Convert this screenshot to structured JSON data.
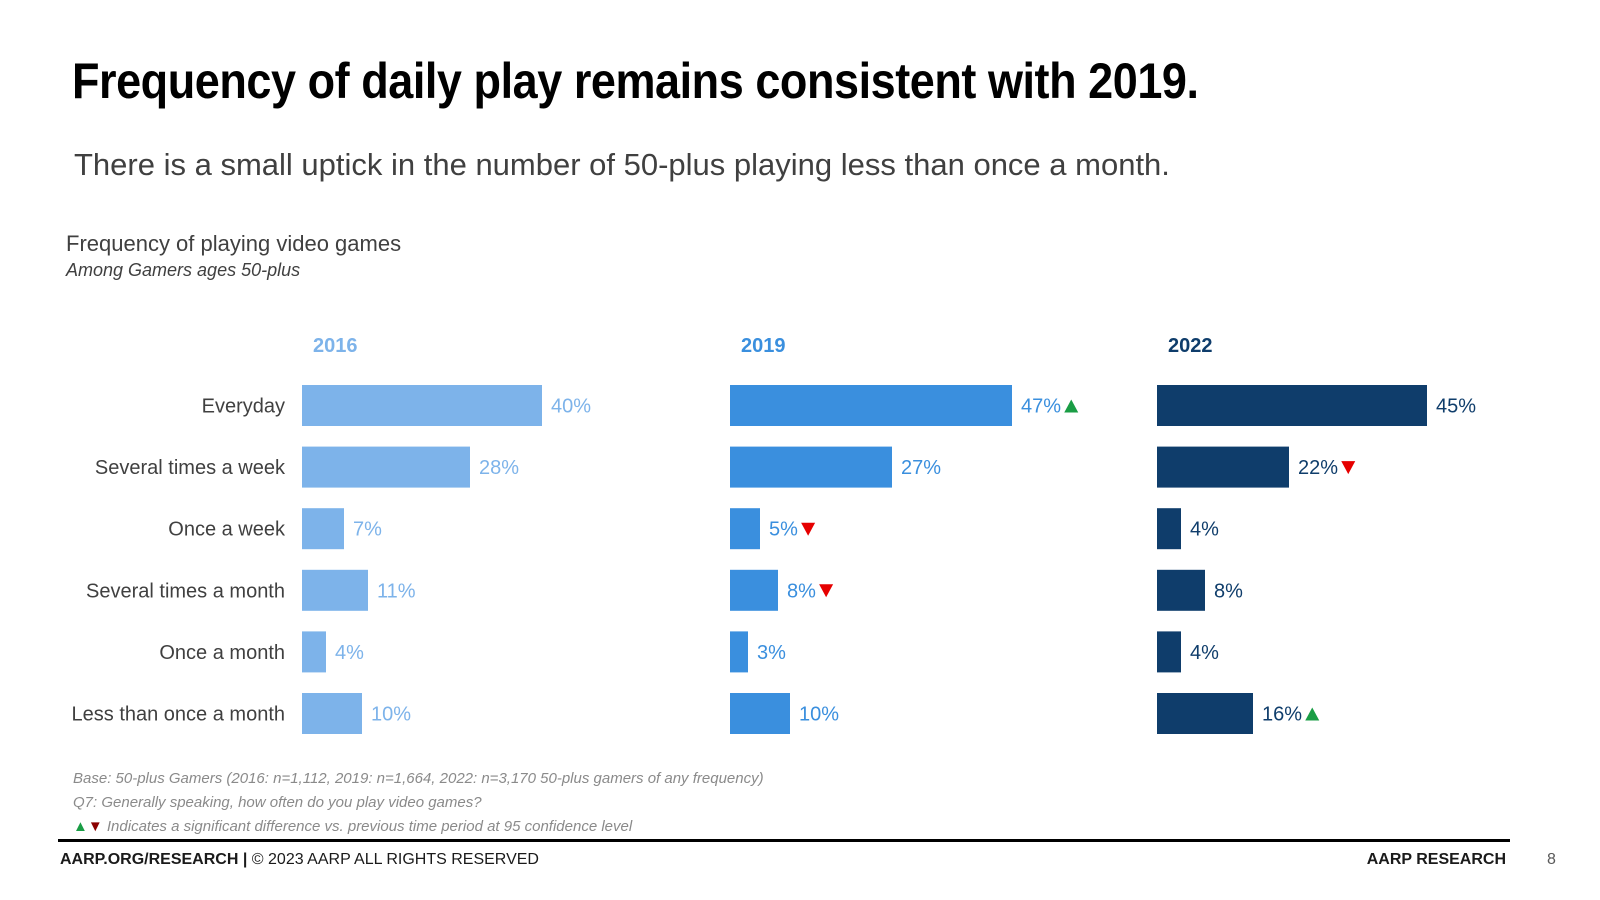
{
  "slide": {
    "title": "Frequency of daily play remains consistent with 2019.",
    "subtitle": "There is a small uptick in the number of 50-plus playing less than once a month."
  },
  "chart_data": {
    "type": "bar",
    "orientation": "horizontal",
    "title": "Frequency of playing video games",
    "subtitle": "Among Gamers ages 50-plus",
    "categories": [
      "Everyday",
      "Several times a week",
      "Once a week",
      "Several times a month",
      "Once a month",
      "Less than once a month"
    ],
    "value_format": "percent",
    "series": [
      {
        "name": "2016",
        "color": "#7db3ea",
        "values": [
          40,
          28,
          7,
          11,
          4,
          10
        ],
        "markers": [
          "",
          "",
          "",
          "",
          "",
          ""
        ]
      },
      {
        "name": "2019",
        "color": "#3a8fde",
        "values": [
          47,
          27,
          5,
          8,
          3,
          10
        ],
        "markers": [
          "up",
          "",
          "down",
          "down",
          "",
          ""
        ]
      },
      {
        "name": "2022",
        "color": "#0f3d6b",
        "values": [
          45,
          22,
          4,
          8,
          4,
          16
        ],
        "markers": [
          "",
          "down",
          "",
          "",
          "",
          "up"
        ]
      }
    ],
    "marker_colors": {
      "up": "#1a9d45",
      "down": "#e60000"
    },
    "xlim": [
      0,
      50
    ]
  },
  "notes": {
    "base": "Base: 50-plus Gamers (2016: n=1,112, 2019: n=1,664, 2022: n=3,170 50-plus gamers of any frequency)",
    "question": "Q7: Generally speaking, how often do you play video games?",
    "legend_up": "▲",
    "legend_down": "▼",
    "legend_text": " Indicates a significant difference vs. previous time period at 95 confidence level"
  },
  "footer": {
    "site": "AARP.ORG/RESEARCH",
    "separator": " | ",
    "copyright": "© 2023 AARP ALL RIGHTS RESERVED",
    "brand": "AARP RESEARCH",
    "page": "8"
  }
}
